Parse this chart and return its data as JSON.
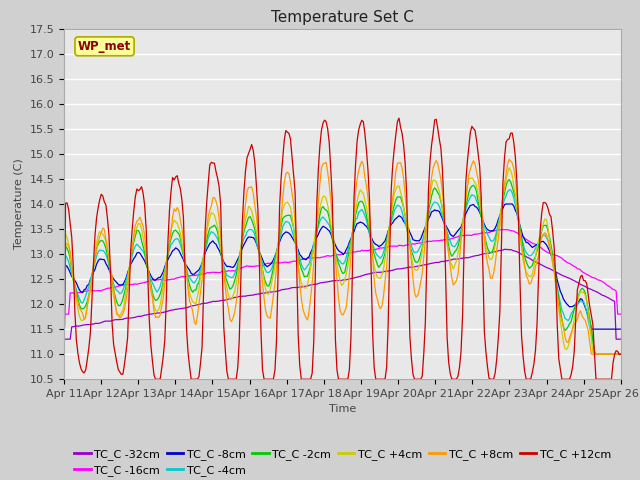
{
  "title": "Temperature Set C",
  "xlabel": "Time",
  "ylabel": "Temperature (C)",
  "ylim": [
    10.5,
    17.5
  ],
  "x_tick_labels": [
    "Apr 11",
    "Apr 12",
    "Apr 13",
    "Apr 14",
    "Apr 15",
    "Apr 16",
    "Apr 17",
    "Apr 18",
    "Apr 19",
    "Apr 20",
    "Apr 21",
    "Apr 22",
    "Apr 23",
    "Apr 24",
    "Apr 25",
    "Apr 26"
  ],
  "wp_met_label": "WP_met",
  "series_colors": {
    "TC_C -32cm": "#9900cc",
    "TC_C -16cm": "#ff00ff",
    "TC_C -8cm": "#0000cc",
    "TC_C -4cm": "#00cccc",
    "TC_C -2cm": "#00cc00",
    "TC_C +4cm": "#cccc00",
    "TC_C +8cm": "#ff9900",
    "TC_C +12cm": "#cc0000"
  },
  "fig_bg_color": "#d0d0d0",
  "plot_bg_color": "#e8e8e8",
  "grid_color": "#ffffff",
  "title_fontsize": 11,
  "axis_fontsize": 8,
  "legend_fontsize": 8
}
